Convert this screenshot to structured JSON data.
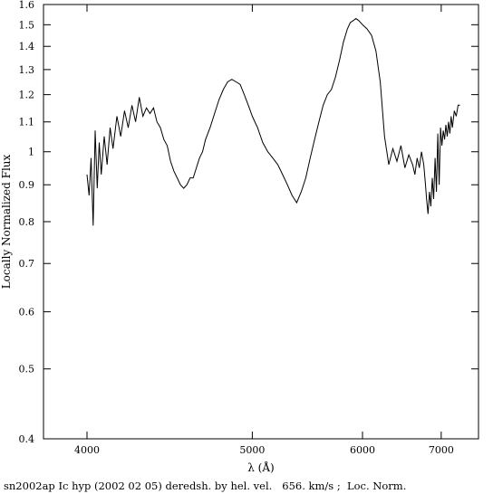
{
  "chart_data": {
    "type": "line",
    "title": "",
    "xlabel": "λ (Å)",
    "ylabel": "Locally Normalized Flux",
    "caption": "sn2002ap Ic hyp (2002 02 05) deredsh. by hel. vel.   656. km/s ;  Loc. Norm.",
    "x_scale": "reciprocal",
    "y_scale": "log",
    "xlim": [
      3800,
      7600
    ],
    "ylim": [
      0.4,
      1.6
    ],
    "x_ticks": [
      4000,
      5000,
      6000,
      7000
    ],
    "x_tick_labels": [
      "4000",
      "5000",
      "6000",
      "7000"
    ],
    "y_ticks": [
      0.4,
      0.5,
      0.6,
      0.7,
      0.8,
      0.9,
      1,
      1.1,
      1.2,
      1.3,
      1.4,
      1.5,
      1.6
    ],
    "y_tick_labels": [
      "0.4",
      "0.5",
      "0.6",
      "0.7",
      "0.8",
      "0.9",
      "1",
      "1.1",
      "1.2",
      "1.3",
      "1.4",
      "1.5",
      "1.6"
    ],
    "grid": false,
    "series": [
      {
        "x": [
          4000,
          4010,
          4020,
          4030,
          4040,
          4050,
          4060,
          4070,
          4085,
          4100,
          4115,
          4130,
          4150,
          4170,
          4190,
          4210,
          4230,
          4250,
          4270,
          4290,
          4310,
          4330,
          4350,
          4370,
          4390,
          4410,
          4430,
          4450,
          4470,
          4490,
          4510,
          4530,
          4550,
          4570,
          4590,
          4610,
          4630,
          4650,
          4670,
          4700,
          4730,
          4760,
          4790,
          4820,
          4850,
          4880,
          4910,
          4940,
          4970,
          5000,
          5040,
          5080,
          5120,
          5160,
          5200,
          5240,
          5280,
          5320,
          5360,
          5400,
          5440,
          5480,
          5520,
          5560,
          5600,
          5640,
          5680,
          5720,
          5760,
          5800,
          5840,
          5870,
          5900,
          5930,
          5960,
          6000,
          6050,
          6100,
          6150,
          6200,
          6250,
          6300,
          6350,
          6400,
          6450,
          6500,
          6550,
          6600,
          6630,
          6660,
          6690,
          6720,
          6750,
          6770,
          6790,
          6810,
          6830,
          6850,
          6870,
          6890,
          6910,
          6930,
          6950,
          6970,
          6990,
          7010,
          7030,
          7050,
          7070,
          7090,
          7110,
          7130,
          7150,
          7170,
          7200,
          7230,
          7260,
          7290
        ],
        "y": [
          0.93,
          0.87,
          0.98,
          0.79,
          1.07,
          0.89,
          1.03,
          0.93,
          1.05,
          0.96,
          1.08,
          1.01,
          1.12,
          1.05,
          1.14,
          1.08,
          1.16,
          1.1,
          1.19,
          1.12,
          1.15,
          1.13,
          1.15,
          1.1,
          1.08,
          1.04,
          1.02,
          0.97,
          0.94,
          0.92,
          0.9,
          0.89,
          0.9,
          0.92,
          0.92,
          0.95,
          0.98,
          1.0,
          1.04,
          1.08,
          1.13,
          1.18,
          1.22,
          1.25,
          1.26,
          1.25,
          1.24,
          1.2,
          1.16,
          1.12,
          1.08,
          1.03,
          1.0,
          0.98,
          0.96,
          0.93,
          0.9,
          0.87,
          0.85,
          0.88,
          0.92,
          0.98,
          1.04,
          1.1,
          1.16,
          1.2,
          1.22,
          1.27,
          1.34,
          1.42,
          1.48,
          1.51,
          1.52,
          1.53,
          1.52,
          1.5,
          1.48,
          1.45,
          1.38,
          1.25,
          1.05,
          0.96,
          1.01,
          0.97,
          1.02,
          0.95,
          0.99,
          0.96,
          0.93,
          0.98,
          0.95,
          1.0,
          0.96,
          0.91,
          0.86,
          0.82,
          0.88,
          0.84,
          0.92,
          0.86,
          0.98,
          0.88,
          1.06,
          0.9,
          1.08,
          1.02,
          1.07,
          1.04,
          1.09,
          1.05,
          1.1,
          1.06,
          1.12,
          1.08,
          1.14,
          1.12,
          1.16,
          1.16
        ]
      }
    ]
  }
}
